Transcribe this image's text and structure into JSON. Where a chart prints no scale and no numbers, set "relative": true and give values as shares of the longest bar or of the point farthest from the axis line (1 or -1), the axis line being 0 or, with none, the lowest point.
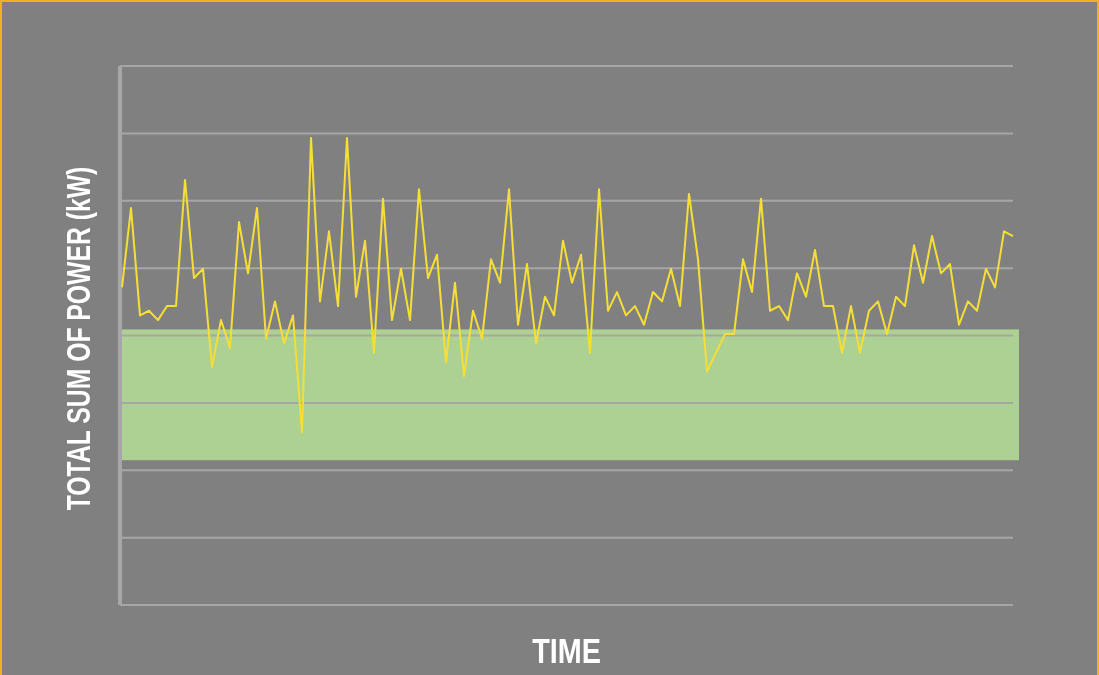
{
  "chart_data": {
    "type": "line",
    "relative": true,
    "xlabel": "TIME",
    "ylabel": "TOTAL SUM OF POWER (kW)",
    "grid": true,
    "marker": "none",
    "line_style": "solid",
    "categories": [
      null,
      null,
      null,
      null,
      null,
      null,
      null,
      null,
      null,
      null,
      null,
      null,
      null,
      null,
      null,
      null,
      null,
      null,
      null,
      null,
      null,
      null,
      null,
      null,
      null,
      null,
      null,
      null,
      null,
      null,
      null,
      null,
      null,
      null,
      null,
      null,
      null,
      null,
      null,
      null,
      null,
      null,
      null,
      null,
      null,
      null,
      null,
      null,
      null,
      null,
      null,
      null,
      null,
      null,
      null,
      null,
      null,
      null,
      null,
      null,
      null,
      null,
      null,
      null,
      null,
      null,
      null,
      null,
      null,
      null,
      null,
      null,
      null,
      null,
      null,
      null,
      null,
      null,
      null,
      null,
      null,
      null,
      null,
      null,
      null,
      null,
      null,
      null,
      null,
      null,
      null,
      null,
      null,
      null,
      null,
      null,
      null,
      null,
      null,
      null
    ],
    "series": [
      {
        "color": "#f5de37",
        "values": [
          0.68,
          0.85,
          0.62,
          0.63,
          0.61,
          0.64,
          0.64,
          0.91,
          0.7,
          0.72,
          0.51,
          0.61,
          0.55,
          0.82,
          0.71,
          0.85,
          0.57,
          0.65,
          0.56,
          0.62,
          0.37,
          1,
          0.65,
          0.8,
          0.64,
          1,
          0.66,
          0.78,
          0.54,
          0.87,
          0.61,
          0.72,
          0.61,
          0.89,
          0.7,
          0.75,
          0.52,
          0.69,
          0.49,
          0.63,
          0.57,
          0.74,
          0.69,
          0.89,
          0.6,
          0.73,
          0.56,
          0.66,
          0.62,
          0.78,
          0.69,
          0.75,
          0.54,
          0.89,
          0.63,
          0.67,
          0.62,
          0.64,
          0.6,
          0.67,
          0.65,
          0.72,
          0.64,
          0.88,
          0.74,
          0.5,
          0.54,
          0.58,
          0.58,
          0.74,
          0.67,
          0.87,
          0.63,
          0.64,
          0.61,
          0.71,
          0.66,
          0.76,
          0.64,
          0.64,
          0.54,
          0.64,
          0.54,
          0.63,
          0.65,
          0.58,
          0.66,
          0.64,
          0.77,
          0.69,
          0.79,
          0.71,
          0.73,
          0.6,
          0.65,
          0.63,
          0.72,
          0.68,
          0.8,
          0.79
        ]
      }
    ],
    "bands": [
      {
        "axis": "y",
        "from": 0.31,
        "to": 0.59,
        "color": "#acd192"
      }
    ]
  }
}
